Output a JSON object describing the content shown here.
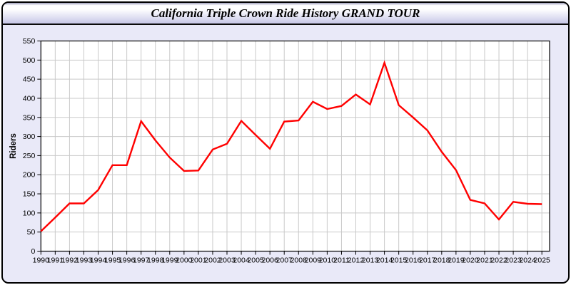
{
  "window": {
    "title": "California Triple Crown Ride History GRAND TOUR"
  },
  "colors": {
    "series_line": "#ff0000",
    "panel_background": "#e9e9f8",
    "plot_background": "#ffffff",
    "grid": "#c9c9c9",
    "axis": "#000000",
    "title_text": "#000000"
  },
  "chart_data": {
    "type": "line",
    "title": "California Triple Crown Ride History GRAND TOUR",
    "xlabel": "",
    "ylabel": "Riders",
    "ylim": [
      0,
      550
    ],
    "ytick_step": 50,
    "grid": true,
    "legend_position": "none",
    "x": [
      1990,
      1991,
      1992,
      1993,
      1994,
      1995,
      1996,
      1997,
      1998,
      1999,
      2000,
      2001,
      2002,
      2003,
      2004,
      2005,
      2006,
      2007,
      2008,
      2009,
      2010,
      2011,
      2012,
      2013,
      2014,
      2015,
      2016,
      2017,
      2018,
      2019,
      2020,
      2021,
      2022,
      2023,
      2024,
      2025
    ],
    "series": [
      {
        "name": "Riders",
        "color": "#ff0000",
        "values": [
          52,
          88,
          125,
          125,
          160,
          225,
          225,
          340,
          290,
          245,
          210,
          211,
          266,
          281,
          341,
          304,
          268,
          339,
          342,
          391,
          372,
          380,
          410,
          384,
          493,
          382,
          350,
          316,
          260,
          212,
          134,
          125,
          83,
          129,
          124,
          123
        ]
      }
    ]
  }
}
